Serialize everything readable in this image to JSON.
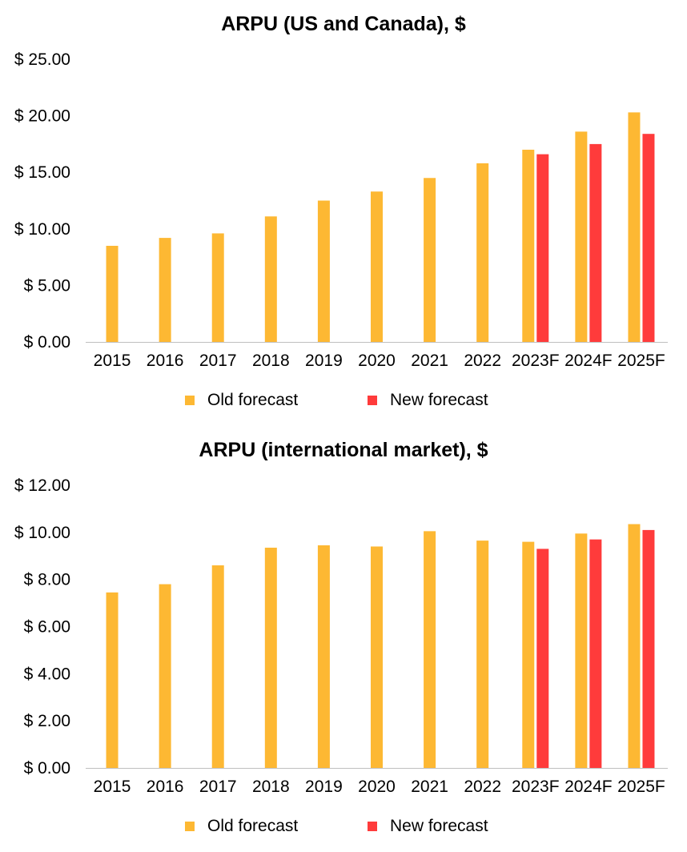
{
  "colors": {
    "old": "#FDB833",
    "new": "#FF3B3B",
    "axis": "#bfbfbf"
  },
  "chart_data": [
    {
      "type": "bar",
      "title": "ARPU (US and Canada), $",
      "categories": [
        "2015",
        "2016",
        "2017",
        "2018",
        "2019",
        "2020",
        "2021",
        "2022",
        "2023F",
        "2024F",
        "2025F"
      ],
      "series": [
        {
          "name": "Old forecast",
          "values": [
            8.5,
            9.2,
            9.6,
            11.1,
            12.5,
            13.3,
            14.5,
            15.8,
            17.0,
            18.6,
            20.3
          ]
        },
        {
          "name": "New forecast",
          "values": [
            null,
            null,
            null,
            null,
            null,
            null,
            null,
            null,
            16.6,
            17.5,
            18.4
          ]
        }
      ],
      "ylim": [
        0,
        25
      ],
      "yticks": [
        "$ 0.00",
        "$ 5.00",
        "$ 10.00",
        "$ 15.00",
        "$ 20.00",
        "$ 25.00"
      ],
      "grid": false,
      "legend": "bottom"
    },
    {
      "type": "bar",
      "title": "ARPU (international market), $",
      "categories": [
        "2015",
        "2016",
        "2017",
        "2018",
        "2019",
        "2020",
        "2021",
        "2022",
        "2023F",
        "2024F",
        "2025F"
      ],
      "series": [
        {
          "name": "Old forecast",
          "values": [
            7.45,
            7.8,
            8.6,
            9.35,
            9.45,
            9.4,
            10.05,
            9.65,
            9.6,
            9.95,
            10.35
          ]
        },
        {
          "name": "New forecast",
          "values": [
            null,
            null,
            null,
            null,
            null,
            null,
            null,
            null,
            9.3,
            9.7,
            10.1
          ]
        }
      ],
      "ylim": [
        0,
        12
      ],
      "yticks": [
        "$ 0.00",
        "$ 2.00",
        "$ 4.00",
        "$ 6.00",
        "$ 8.00",
        "$ 10.00",
        "$ 12.00"
      ],
      "grid": false,
      "legend": "bottom"
    }
  ]
}
